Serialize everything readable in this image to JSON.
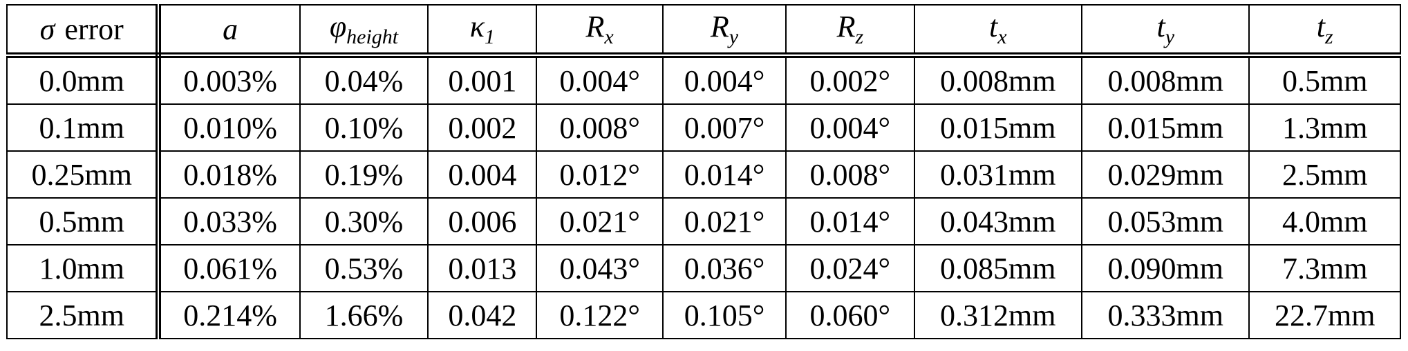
{
  "table": {
    "header": [
      {
        "base": "σ",
        "suffix": "error"
      },
      {
        "base": "a"
      },
      {
        "base": "φ",
        "sub": "height"
      },
      {
        "base": "κ",
        "sub": "1"
      },
      {
        "base": "R",
        "sub": "x"
      },
      {
        "base": "R",
        "sub": "y"
      },
      {
        "base": "R",
        "sub": "z"
      },
      {
        "base": "t",
        "sub": "x"
      },
      {
        "base": "t",
        "sub": "y"
      },
      {
        "base": "t",
        "sub": "z"
      }
    ],
    "rows": [
      [
        "0.0mm",
        "0.003%",
        "0.04%",
        "0.001",
        "0.004°",
        "0.004°",
        "0.002°",
        "0.008mm",
        "0.008mm",
        "0.5mm"
      ],
      [
        "0.1mm",
        "0.010%",
        "0.10%",
        "0.002",
        "0.008°",
        "0.007°",
        "0.004°",
        "0.015mm",
        "0.015mm",
        "1.3mm"
      ],
      [
        "0.25mm",
        "0.018%",
        "0.19%",
        "0.004",
        "0.012°",
        "0.014°",
        "0.008°",
        "0.031mm",
        "0.029mm",
        "2.5mm"
      ],
      [
        "0.5mm",
        "0.033%",
        "0.30%",
        "0.006",
        "0.021°",
        "0.021°",
        "0.014°",
        "0.043mm",
        "0.053mm",
        "4.0mm"
      ],
      [
        "1.0mm",
        "0.061%",
        "0.53%",
        "0.013",
        "0.043°",
        "0.036°",
        "0.024°",
        "0.085mm",
        "0.090mm",
        "7.3mm"
      ],
      [
        "2.5mm",
        "0.214%",
        "1.66%",
        "0.042",
        "0.122°",
        "0.105°",
        "0.060°",
        "0.312mm",
        "0.333mm",
        "22.7mm"
      ]
    ]
  }
}
